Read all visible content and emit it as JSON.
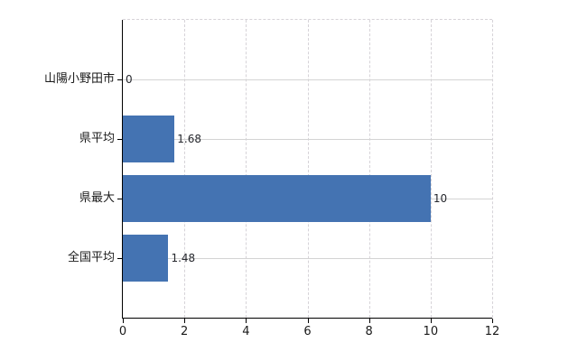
{
  "chart_data": {
    "type": "bar",
    "orientation": "horizontal",
    "title": "",
    "xlabel": "",
    "ylabel": "",
    "categories": [
      "山陽小野田市",
      "県平均",
      "県最大",
      "全国平均"
    ],
    "values": [
      0,
      1.68,
      10,
      1.48
    ],
    "value_labels": [
      "0",
      "1.68",
      "10",
      "1.48"
    ],
    "xlim": [
      0,
      12
    ],
    "x_tick_labels": [
      "0",
      "2",
      "4",
      "6",
      "8",
      "10",
      "12"
    ],
    "grid": true,
    "legend": false,
    "colors": {
      "bar": "#4473b2",
      "grid_vertical": "#d6d3d8",
      "grid_horizontal": "#d4d4d4",
      "axis": "#000000",
      "category_text": "#1a1a1a",
      "value_text": "#26282e",
      "tick_text": "#1a1a1a",
      "background": "#ffffff"
    }
  }
}
